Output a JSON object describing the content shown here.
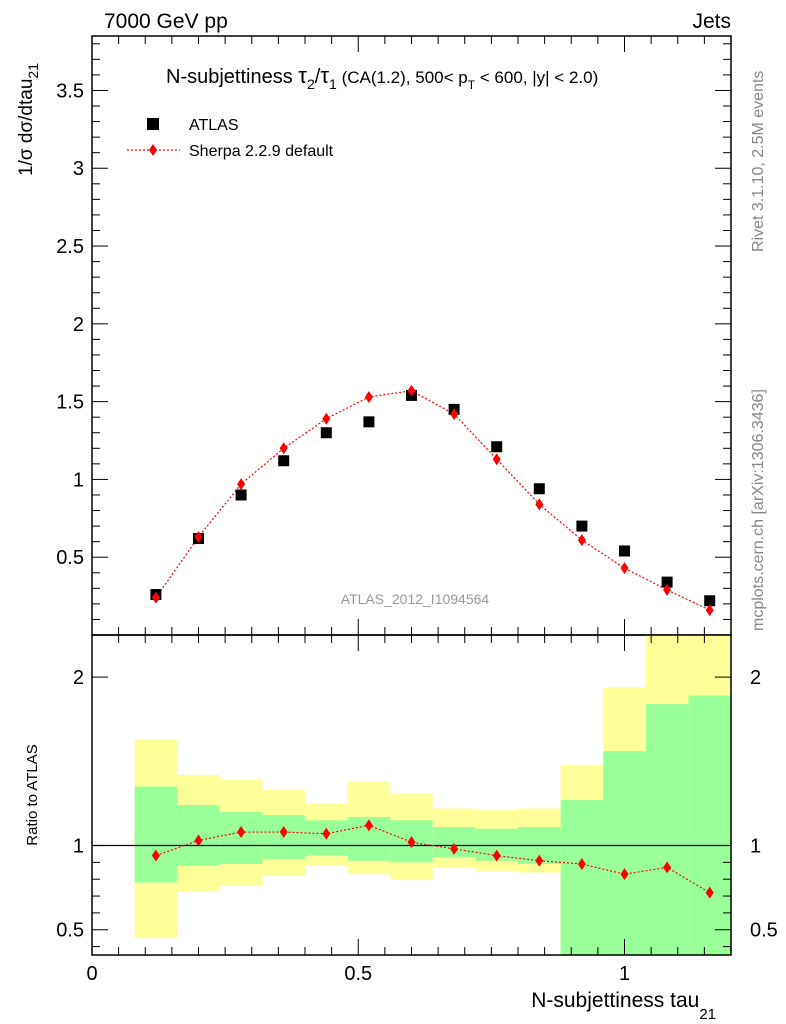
{
  "header": {
    "left": "7000 GeV pp",
    "right": "Jets"
  },
  "side_text": {
    "top": "Rivet 3.1.10,  2.5M events",
    "bottom": "mcplots.cern.ch [arXiv:1306.3436]"
  },
  "chart_data": [
    {
      "type": "scatter",
      "title": {
        "prefix": "N-subjettiness ",
        "tau": "τ",
        "sub2": "2",
        "slash": "/",
        "sub1": "1",
        "cuts_a": " (CA(1.2), 500< p",
        "cuts_sub": "T",
        "cuts_b": " < 600, |y| < 2.0)"
      },
      "ylabel": {
        "main": "1/σ dσ/dtau",
        "sub": "21"
      },
      "xlabel": {
        "main": "N-subjettiness tau",
        "sub": "21"
      },
      "watermark": "ATLAS_2012_I1094564",
      "xlim": [
        0,
        1.2
      ],
      "ylim": [
        0,
        3.85
      ],
      "yticks": [
        0.5,
        1,
        1.5,
        2,
        2.5,
        3,
        3.5
      ],
      "ytick_labels": [
        "0.5",
        "1",
        "1.5",
        "2",
        "2.5",
        "3",
        "3.5"
      ],
      "legend_placement": "top-left",
      "series": [
        {
          "name": "ATLAS",
          "marker": "square",
          "color": "#000000",
          "x": [
            0.12,
            0.2,
            0.28,
            0.36,
            0.44,
            0.52,
            0.6,
            0.68,
            0.76,
            0.84,
            0.92,
            1.0,
            1.08,
            1.16
          ],
          "y": [
            0.26,
            0.62,
            0.9,
            1.12,
            1.3,
            1.37,
            1.54,
            1.45,
            1.21,
            0.94,
            0.7,
            0.54,
            0.34,
            0.22
          ]
        },
        {
          "name": "Sherpa 2.2.9 default",
          "marker": "diamond",
          "color": "#ff0000",
          "line": "dotted",
          "x": [
            0.12,
            0.2,
            0.28,
            0.36,
            0.44,
            0.52,
            0.6,
            0.68,
            0.76,
            0.84,
            0.92,
            1.0,
            1.08,
            1.16
          ],
          "y": [
            0.24,
            0.63,
            0.97,
            1.2,
            1.39,
            1.53,
            1.57,
            1.42,
            1.13,
            0.84,
            0.61,
            0.43,
            0.29,
            0.16
          ]
        }
      ]
    },
    {
      "type": "line",
      "ylabel": "Ratio to ATLAS",
      "xlim": [
        0,
        1.2
      ],
      "ylim": [
        0.35,
        2.25
      ],
      "yticks": [
        0.5,
        1,
        2
      ],
      "ytick_labels": [
        "0.5",
        "1",
        "2"
      ],
      "xticks": [
        0,
        0.5,
        1
      ],
      "xtick_labels": [
        "0",
        "0.5",
        "1"
      ],
      "bins": [
        [
          0.08,
          0.16
        ],
        [
          0.16,
          0.24
        ],
        [
          0.24,
          0.32
        ],
        [
          0.32,
          0.4
        ],
        [
          0.4,
          0.48
        ],
        [
          0.48,
          0.56
        ],
        [
          0.56,
          0.64
        ],
        [
          0.64,
          0.72
        ],
        [
          0.72,
          0.8
        ],
        [
          0.8,
          0.88
        ],
        [
          0.88,
          0.96
        ],
        [
          0.96,
          1.04
        ],
        [
          1.04,
          1.12
        ],
        [
          1.12,
          1.2
        ]
      ],
      "band_outer": {
        "color": "#ffff99",
        "lo": [
          0.45,
          0.73,
          0.76,
          0.82,
          0.88,
          0.83,
          0.8,
          0.87,
          0.85,
          0.84,
          0.0,
          0.0,
          0.0,
          0.0
        ],
        "hi": [
          1.63,
          1.42,
          1.39,
          1.33,
          1.25,
          1.38,
          1.31,
          1.22,
          1.21,
          1.22,
          1.48,
          1.94,
          2.5,
          2.5
        ]
      },
      "band_inner": {
        "color": "#99ff99",
        "lo": [
          0.78,
          0.88,
          0.89,
          0.92,
          0.94,
          0.91,
          0.9,
          0.93,
          0.91,
          0.89,
          0.0,
          0.0,
          0.0,
          0.0
        ],
        "hi": [
          1.35,
          1.24,
          1.2,
          1.18,
          1.15,
          1.17,
          1.15,
          1.11,
          1.1,
          1.11,
          1.27,
          1.56,
          1.84,
          1.89
        ]
      },
      "series": [
        {
          "name": "Sherpa 2.2.9 default",
          "color": "#ff0000",
          "x": [
            0.12,
            0.2,
            0.28,
            0.36,
            0.44,
            0.52,
            0.6,
            0.68,
            0.76,
            0.84,
            0.92,
            1.0,
            1.08,
            1.16
          ],
          "y": [
            0.94,
            1.03,
            1.08,
            1.08,
            1.07,
            1.12,
            1.02,
            0.98,
            0.94,
            0.91,
            0.89,
            0.83,
            0.87,
            0.72
          ]
        }
      ]
    }
  ]
}
